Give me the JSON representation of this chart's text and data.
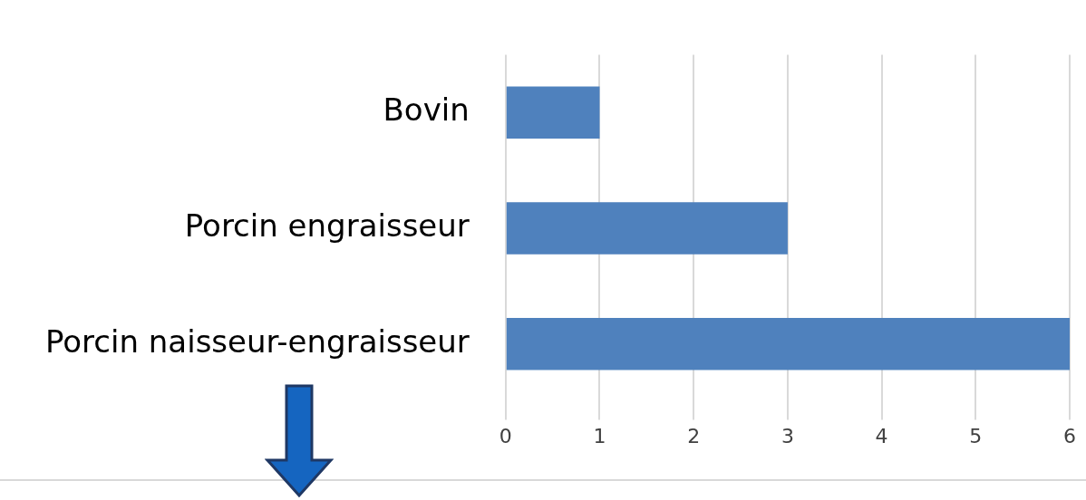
{
  "chart_data": {
    "type": "bar",
    "orientation": "horizontal",
    "categories": [
      "Bovin",
      "Porcin engraisseur",
      "Porcin naisseur-engraisseur"
    ],
    "values": [
      1,
      3,
      6
    ],
    "color": "#4f81bd",
    "xlim": [
      0,
      6
    ],
    "xticks": [
      0,
      1,
      2,
      3,
      4,
      5,
      6
    ],
    "grid": "x"
  }
}
